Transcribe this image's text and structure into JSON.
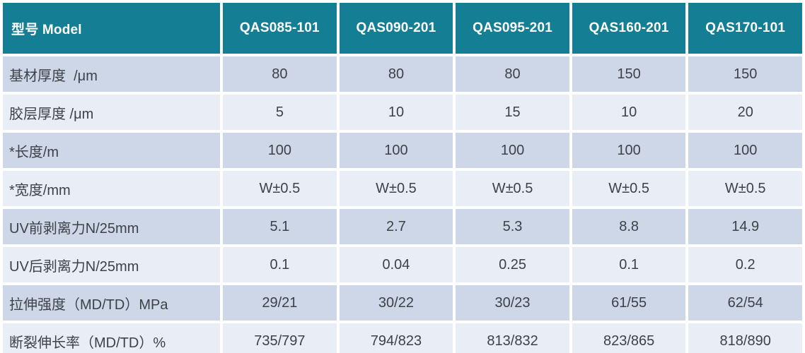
{
  "table": {
    "header": {
      "label": "型号 Model",
      "columns": [
        "QAS085-101",
        "QAS090-201",
        "QAS095-201",
        "QAS160-201",
        "QAS170-101"
      ]
    },
    "rows": [
      {
        "label": "基材厚度  /μm",
        "values": [
          "80",
          "80",
          "80",
          "150",
          "150"
        ]
      },
      {
        "label": "胶层厚度 /μm",
        "values": [
          "5",
          "10",
          "15",
          "10",
          "20"
        ]
      },
      {
        "label": "*长度/m",
        "values": [
          "100",
          "100",
          "100",
          "100",
          "100"
        ]
      },
      {
        "label": "*宽度/mm",
        "values": [
          "W±0.5",
          "W±0.5",
          "W±0.5",
          "W±0.5",
          "W±0.5"
        ]
      },
      {
        "label": "UV前剥离力N/25mm",
        "values": [
          "5.1",
          "2.7",
          "5.3",
          "8.8",
          "14.9"
        ]
      },
      {
        "label": "UV后剥离力N/25mm",
        "values": [
          "0.1",
          "0.04",
          "0.25",
          "0.1",
          "0.2"
        ]
      },
      {
        "label": "拉伸强度（MD/TD）MPa",
        "values": [
          "29/21",
          "30/22",
          "30/23",
          "61/55",
          "62/54"
        ]
      },
      {
        "label": "断裂伸长率（MD/TD）%",
        "values": [
          "735/797",
          "794/823",
          "813/832",
          "823/865",
          "818/890"
        ]
      }
    ],
    "colors": {
      "header_bg": "#147e94",
      "header_text": "#ffffff",
      "row_dark_bg": "#cdd7e8",
      "row_light_bg": "#e9edf6",
      "cell_text": "#3d4148",
      "gap": "#ffffff"
    }
  }
}
